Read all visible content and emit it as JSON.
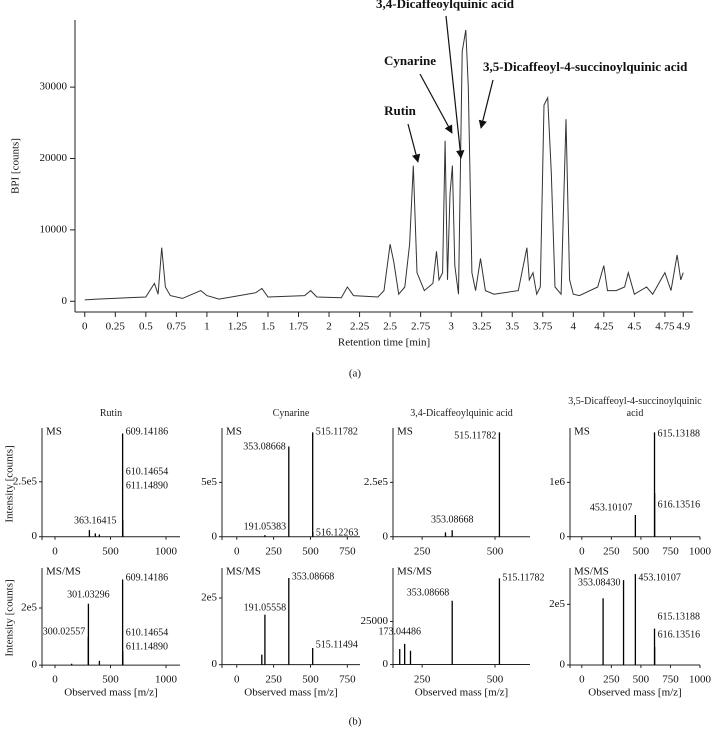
{
  "captions": [
    "(a)",
    "(b)"
  ],
  "chart_data": [
    {
      "type": "line",
      "xlabel": "Retention time [min]",
      "ylabel": "BPI [counts]",
      "color": "#333333",
      "annotations": [
        "Rutin",
        "Cynarine",
        "3,4-Dicaffeoylquinic acid",
        "3,5-Dicaffeoyl-4-succinoylquinic acid"
      ],
      "xlim": [
        -0.08,
        4.98
      ],
      "ylim": [
        -1500,
        39400
      ],
      "xticks": [
        0,
        0.25,
        0.5,
        0.75,
        1,
        1.25,
        1.5,
        1.75,
        2,
        2.25,
        2.5,
        2.75,
        3,
        3.25,
        3.5,
        3.75,
        4,
        4.25,
        4.5,
        4.75,
        4.9
      ],
      "yticks": [
        0,
        10000,
        20000,
        30000
      ],
      "x": [
        0,
        0.1,
        0.5,
        0.57,
        0.6,
        0.63,
        0.66,
        0.7,
        0.8,
        0.95,
        1.0,
        1.1,
        1.4,
        1.45,
        1.5,
        1.8,
        1.85,
        1.9,
        2.1,
        2.15,
        2.2,
        2.4,
        2.45,
        2.5,
        2.53,
        2.57,
        2.62,
        2.66,
        2.69,
        2.72,
        2.78,
        2.85,
        2.88,
        2.9,
        2.93,
        2.95,
        2.97,
        2.99,
        3.01,
        3.03,
        3.06,
        3.09,
        3.12,
        3.14,
        3.17,
        3.2,
        3.24,
        3.28,
        3.35,
        3.55,
        3.62,
        3.64,
        3.67,
        3.7,
        3.73,
        3.76,
        3.79,
        3.82,
        3.85,
        3.9,
        3.94,
        3.97,
        4.0,
        4.05,
        4.2,
        4.25,
        4.28,
        4.35,
        4.42,
        4.45,
        4.5,
        4.6,
        4.65,
        4.7,
        4.75,
        4.8,
        4.85,
        4.88,
        4.9
      ],
      "values": [
        200,
        300,
        600,
        2500,
        1000,
        7500,
        2000,
        800,
        400,
        1500,
        800,
        300,
        1200,
        1800,
        600,
        800,
        1500,
        600,
        500,
        2000,
        800,
        600,
        1500,
        8000,
        5500,
        1000,
        2000,
        8000,
        19000,
        4000,
        1500,
        2500,
        7000,
        3000,
        4000,
        22500,
        3000,
        15000,
        19000,
        5000,
        1000,
        35000,
        38000,
        30000,
        4000,
        1500,
        6000,
        1500,
        1000,
        1500,
        7500,
        3000,
        4000,
        1000,
        2000,
        27500,
        28500,
        18000,
        2000,
        1000,
        25500,
        3000,
        1000,
        800,
        2000,
        5000,
        1500,
        1500,
        2000,
        4000,
        1000,
        2000,
        1000,
        2500,
        4000,
        1500,
        6500,
        3000,
        4000
      ]
    },
    {
      "type": "stem",
      "title": "Rutin",
      "label": "MS",
      "ylabel": "Intensity [counts]",
      "color": "#000000",
      "xlim": [
        -117,
        1126
      ],
      "xticks": [
        0,
        500,
        1000
      ],
      "ylim": [
        -15000,
        495000
      ],
      "yticks": [
        0,
        {
          "value": 250000,
          "label": "2.5e5"
        }
      ],
      "x": [
        310,
        363.16415,
        400,
        609.14186,
        610.14654,
        611.1489
      ],
      "values": [
        30000,
        15000,
        10000,
        470000,
        75000,
        25000
      ],
      "peak_labels": [
        null,
        "363.16415",
        null,
        "609.14186",
        "610.14654",
        "611.14890"
      ]
    },
    {
      "type": "stem",
      "title": "Cynarine",
      "label": "MS",
      "color": "#000000",
      "xlim": [
        -100,
        836
      ],
      "xticks": [
        0,
        250,
        500,
        750
      ],
      "ylim": [
        -30000,
        1000000
      ],
      "yticks": [
        0,
        {
          "value": 500000,
          "label": "5e5"
        }
      ],
      "x": [
        191.05383,
        353.08668,
        515.11782,
        516.12263
      ],
      "values": [
        15000,
        830000,
        960000,
        40000
      ],
      "peak_labels": [
        "191.05383",
        "353.08668",
        "515.11782",
        "516.12263"
      ]
    },
    {
      "type": "stem",
      "title": "3,4-Dicaffeoylquinic acid",
      "label": "MS",
      "color": "#000000",
      "xlim": [
        150,
        620
      ],
      "xticks": [
        250,
        500
      ],
      "ylim": [
        -15000,
        500000
      ],
      "yticks": [
        0,
        {
          "value": 250000,
          "label": "2.5e5"
        }
      ],
      "x": [
        330,
        353.08668,
        515.11782
      ],
      "values": [
        20000,
        30000,
        480000
      ],
      "peak_labels": [
        null,
        "353.08668",
        "515.11782"
      ]
    },
    {
      "type": "stem",
      "title": "3,5-Dicaffeoyl-4-succinoylquinic acid",
      "label": "MS",
      "color": "#000000",
      "xlim": [
        -100,
        1000
      ],
      "xticks": [
        0,
        250,
        500,
        750,
        1000
      ],
      "ylim": [
        -60000,
        2000000
      ],
      "yticks": [
        0,
        {
          "value": 1000000,
          "label": "1e6"
        }
      ],
      "x": [
        453.10107,
        615.13188,
        616.13516
      ],
      "values": [
        400000,
        1920000,
        800000
      ],
      "peak_labels": [
        "453.10107",
        "615.13188",
        "616.13516"
      ]
    },
    {
      "type": "stem",
      "label": "MS/MS",
      "ylabel": "Intensity [counts]",
      "xlabel": "Observed mass [m/z]",
      "color": "#000000",
      "xlim": [
        -117,
        1126
      ],
      "xticks": [
        0,
        500,
        1000
      ],
      "ylim": [
        -10000,
        340000
      ],
      "yticks": [
        0,
        {
          "value": 200000,
          "label": "2e5"
        }
      ],
      "x": [
        150,
        300.02557,
        301.03296,
        400,
        609.14186,
        610.14654,
        611.1489
      ],
      "values": [
        5000,
        100000,
        215000,
        15000,
        300000,
        50000,
        20000
      ],
      "peak_labels": [
        null,
        "300.02557",
        "301.03296",
        null,
        "609.14186",
        "610.14654",
        "611.14890"
      ]
    },
    {
      "type": "stem",
      "label": "MS/MS",
      "xlabel": "Observed mass [m/z]",
      "color": "#000000",
      "xlim": [
        -100,
        836
      ],
      "xticks": [
        0,
        250,
        500,
        750
      ],
      "ylim": [
        -10000,
        290000
      ],
      "yticks": [
        0,
        {
          "value": 200000,
          "label": "2e5"
        }
      ],
      "x": [
        170,
        191.05558,
        353.08668,
        515.11494
      ],
      "values": [
        30000,
        150000,
        260000,
        50000
      ],
      "peak_labels": [
        null,
        "191.05558",
        "353.08668",
        "515.11494"
      ]
    },
    {
      "type": "stem",
      "label": "MS/MS",
      "xlabel": "Observed mass [m/z]",
      "color": "#000000",
      "xlim": [
        150,
        620
      ],
      "xticks": [
        250,
        500
      ],
      "ylim": [
        -2000,
        56000
      ],
      "yticks": [
        0,
        25000
      ],
      "x": [
        173.04486,
        190,
        210,
        353.08668,
        515.11782
      ],
      "values": [
        9000,
        12000,
        8000,
        37000,
        50000
      ],
      "peak_labels": [
        "173.04486",
        null,
        null,
        "353.08668",
        "515.11782"
      ]
    },
    {
      "type": "stem",
      "label": "MS/MS",
      "xlabel": "Observed mass [m/z]",
      "color": "#000000",
      "xlim": [
        -100,
        1000
      ],
      "xticks": [
        0,
        250,
        500,
        750,
        1000
      ],
      "ylim": [
        -10000,
        320000
      ],
      "yticks": [
        0,
        {
          "value": 200000,
          "label": "2e5"
        }
      ],
      "x": [
        180,
        353.0843,
        453.10107,
        615.13188,
        616.13516
      ],
      "values": [
        220000,
        280000,
        300000,
        120000,
        60000
      ],
      "peak_labels": [
        null,
        "353.08430",
        "453.10107",
        "615.13188",
        "616.13516"
      ]
    }
  ]
}
